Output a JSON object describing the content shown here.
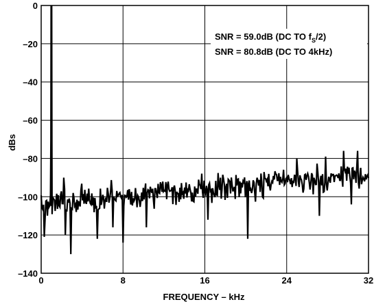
{
  "chart_data": {
    "type": "line",
    "title": "",
    "xlabel": "FREQUENCY – kHz",
    "ylabel": "dBs",
    "xlim": [
      0,
      32
    ],
    "ylim": [
      -140,
      0
    ],
    "x_ticks": [
      0,
      8,
      16,
      24,
      32
    ],
    "y_ticks": [
      0,
      -20,
      -40,
      -60,
      -80,
      -100,
      -120,
      -140
    ],
    "x_tick_labels": [
      "0",
      "8",
      "16",
      "24",
      "32"
    ],
    "y_tick_labels": [
      "0",
      "–20",
      "–40",
      "–60",
      "–80",
      "–100",
      "–120",
      "–140"
    ],
    "grid": true,
    "annotations": {
      "line1_prefix": "SNR = 59.0dB (DC TO f",
      "line1_sub": "S",
      "line1_suffix": "/2)",
      "line2": "SNR = 80.8dB (DC TO 4kHz)"
    },
    "series": [
      {
        "color": "#000000",
        "tone": {
          "x": 1.0,
          "peak": 0,
          "width": 0.12
        },
        "noise_floor_start": -104,
        "noise_floor_end": -88,
        "noise_std": 6,
        "points": 420,
        "notable_dips": [
          {
            "x": 0.3,
            "y": -121
          },
          {
            "x": 2.9,
            "y": -130
          },
          {
            "x": 2.4,
            "y": -120
          },
          {
            "x": 5.5,
            "y": -122
          },
          {
            "x": 7.0,
            "y": -116
          },
          {
            "x": 8.0,
            "y": -124
          },
          {
            "x": 10.3,
            "y": -116
          },
          {
            "x": 16.3,
            "y": -112
          },
          {
            "x": 20.2,
            "y": -122
          },
          {
            "x": 27.2,
            "y": -110
          },
          {
            "x": 30.3,
            "y": -104
          }
        ],
        "notable_peaks": [
          {
            "x": 2.2,
            "y": -90
          },
          {
            "x": 29.6,
            "y": -76
          },
          {
            "x": 30.9,
            "y": -76
          },
          {
            "x": 27.8,
            "y": -79
          },
          {
            "x": 25.0,
            "y": -80
          }
        ]
      }
    ]
  }
}
